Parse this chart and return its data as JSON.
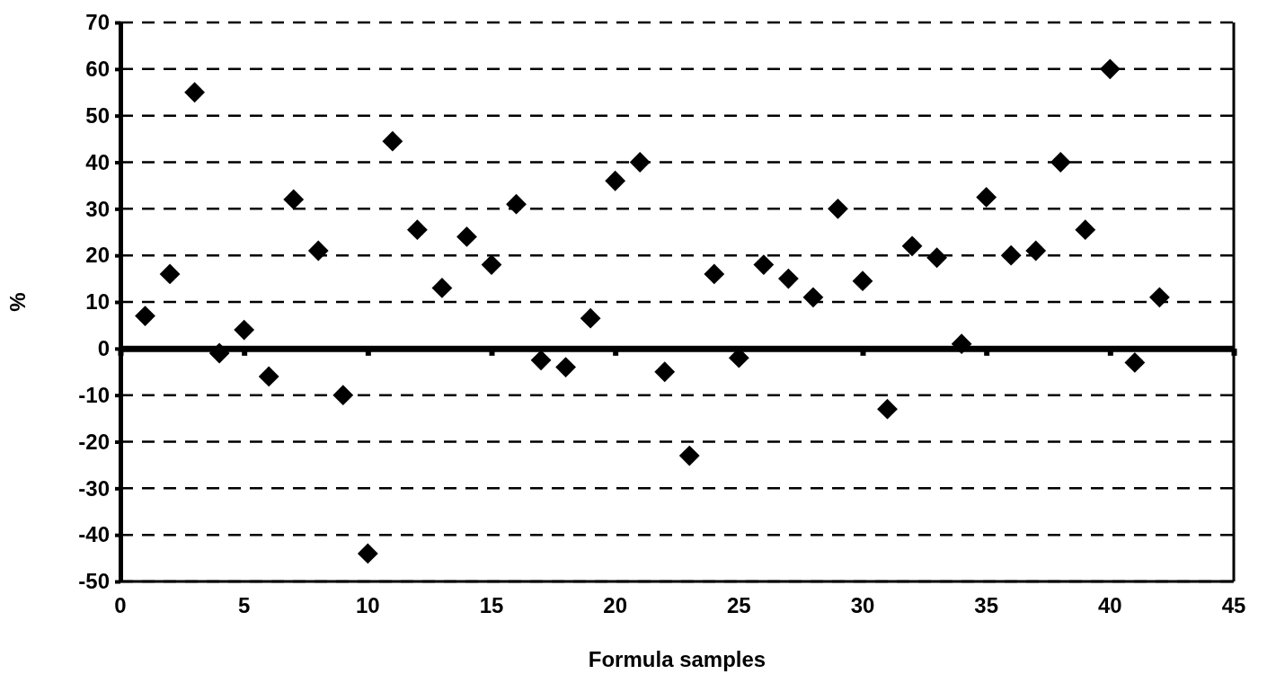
{
  "chart_data": {
    "type": "scatter",
    "xlabel": "Formula samples",
    "ylabel": "%",
    "x": [
      1,
      2,
      3,
      4,
      5,
      6,
      7,
      8,
      9,
      10,
      11,
      12,
      13,
      14,
      15,
      16,
      17,
      18,
      19,
      20,
      21,
      22,
      23,
      24,
      25,
      26,
      27,
      28,
      29,
      30,
      31,
      32,
      33,
      34,
      35,
      36,
      37,
      38,
      39,
      40,
      41,
      42
    ],
    "series": [
      {
        "color": "#000000",
        "values": [
          7,
          16,
          55,
          -1,
          4,
          -6,
          32,
          21,
          -10,
          -44,
          44.5,
          25.5,
          13,
          24,
          18,
          31,
          -2.5,
          -4,
          6.5,
          36,
          40,
          -5,
          -23,
          16,
          -2,
          18,
          15,
          11,
          30,
          14.5,
          -13,
          22,
          19.5,
          1,
          32.5,
          20,
          21,
          40,
          25.5,
          60,
          -3,
          11
        ]
      }
    ],
    "xlim": [
      0,
      45
    ],
    "xticks": [
      0,
      5,
      10,
      15,
      20,
      25,
      30,
      35,
      40,
      45
    ],
    "ylim": [
      -50,
      70
    ],
    "yticks": [
      -50,
      -40,
      -30,
      -20,
      -10,
      0,
      10,
      20,
      30,
      40,
      50,
      60,
      70
    ],
    "grid": "y",
    "marker": "diamond"
  }
}
